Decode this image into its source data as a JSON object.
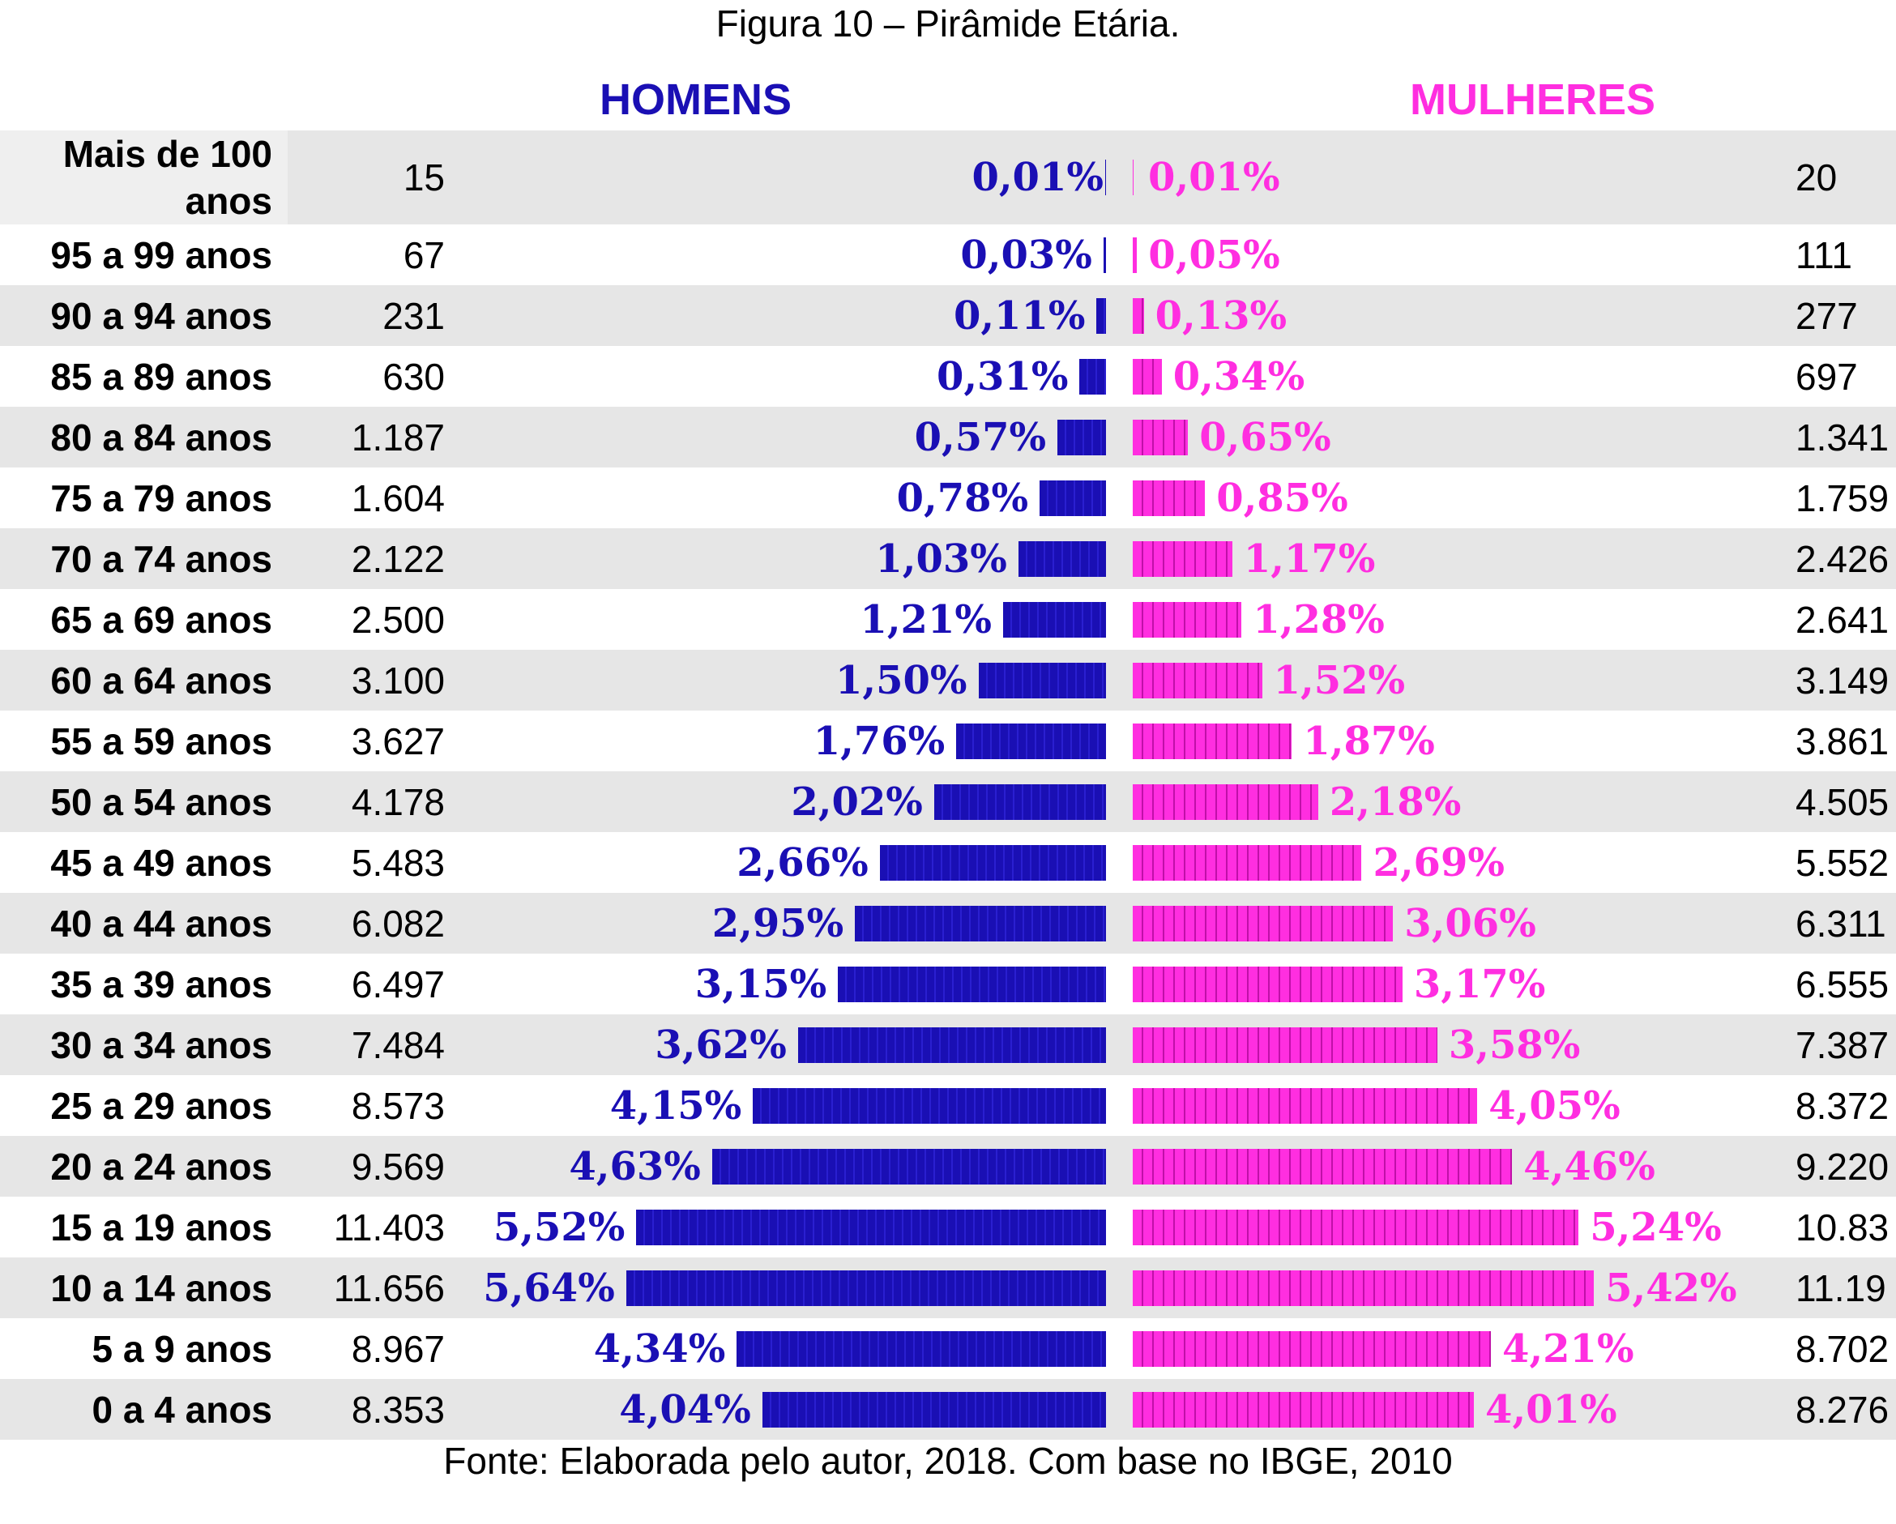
{
  "chart_data": {
    "type": "bar",
    "title": "Figura 10 – Pirâmide Etária.",
    "orientation": "horizontal-pyramid",
    "series": [
      {
        "name": "HOMENS",
        "color": "#1a0fb4",
        "counts": [
          "15",
          "67",
          "231",
          "630",
          "1.187",
          "1.604",
          "2.122",
          "2.500",
          "3.100",
          "3.627",
          "4.178",
          "5.483",
          "6.082",
          "6.497",
          "7.484",
          "8.573",
          "9.569",
          "11.403",
          "11.656",
          "8.967",
          "8.353"
        ],
        "values": [
          0.01,
          0.03,
          0.11,
          0.31,
          0.57,
          0.78,
          1.03,
          1.21,
          1.5,
          1.76,
          2.02,
          2.66,
          2.95,
          3.15,
          3.62,
          4.15,
          4.63,
          5.52,
          5.64,
          4.34,
          4.04
        ],
        "labels": [
          "0,01%",
          "0,03%",
          "0,11%",
          "0,31%",
          "0,57%",
          "0,78%",
          "1,03%",
          "1,21%",
          "1,50%",
          "1,76%",
          "2,02%",
          "2,66%",
          "2,95%",
          "3,15%",
          "3,62%",
          "4,15%",
          "4,63%",
          "5,52%",
          "5,64%",
          "4,34%",
          "4,04%"
        ]
      },
      {
        "name": "MULHERES",
        "color": "#ff2ee0",
        "counts": [
          "20",
          "111",
          "277",
          "697",
          "1.341",
          "1.759",
          "2.426",
          "2.641",
          "3.149",
          "3.861",
          "4.505",
          "5.552",
          "6.311",
          "6.555",
          "7.387",
          "8.372",
          "9.220",
          "10.83",
          "11.19",
          "8.702",
          "8.276"
        ],
        "values": [
          0.01,
          0.05,
          0.13,
          0.34,
          0.65,
          0.85,
          1.17,
          1.28,
          1.52,
          1.87,
          2.18,
          2.69,
          3.06,
          3.17,
          3.58,
          4.05,
          4.46,
          5.24,
          5.42,
          4.21,
          4.01
        ],
        "labels": [
          "0,01%",
          "0,05%",
          "0,13%",
          "0,34%",
          "0,65%",
          "0,85%",
          "1,17%",
          "1,28%",
          "1,52%",
          "1,87%",
          "2,18%",
          "2,69%",
          "3,06%",
          "3,17%",
          "3,58%",
          "4,05%",
          "4,46%",
          "5,24%",
          "5,42%",
          "4,21%",
          "4,01%"
        ]
      }
    ],
    "categories": [
      "Mais de 100 anos",
      "95 a 99 anos",
      "90 a 94 anos",
      "85 a 89 anos",
      "80 a 84 anos",
      "75 a 79 anos",
      "70 a 74 anos",
      "65 a 69 anos",
      "60 a 64 anos",
      "55 a 59 anos",
      "50 a 54 anos",
      "45 a 49 anos",
      "40 a 44 anos",
      "35 a 39 anos",
      "30 a 34 anos",
      "25 a 29 anos",
      "20 a 24 anos",
      "15 a 19 anos",
      "10 a 14 anos",
      "5 a 9 anos",
      "0 a 4 anos"
    ],
    "grid": false
  },
  "footer": "Fonte: Elaborada pelo autor, 2018. Com base no IBGE, 2010"
}
